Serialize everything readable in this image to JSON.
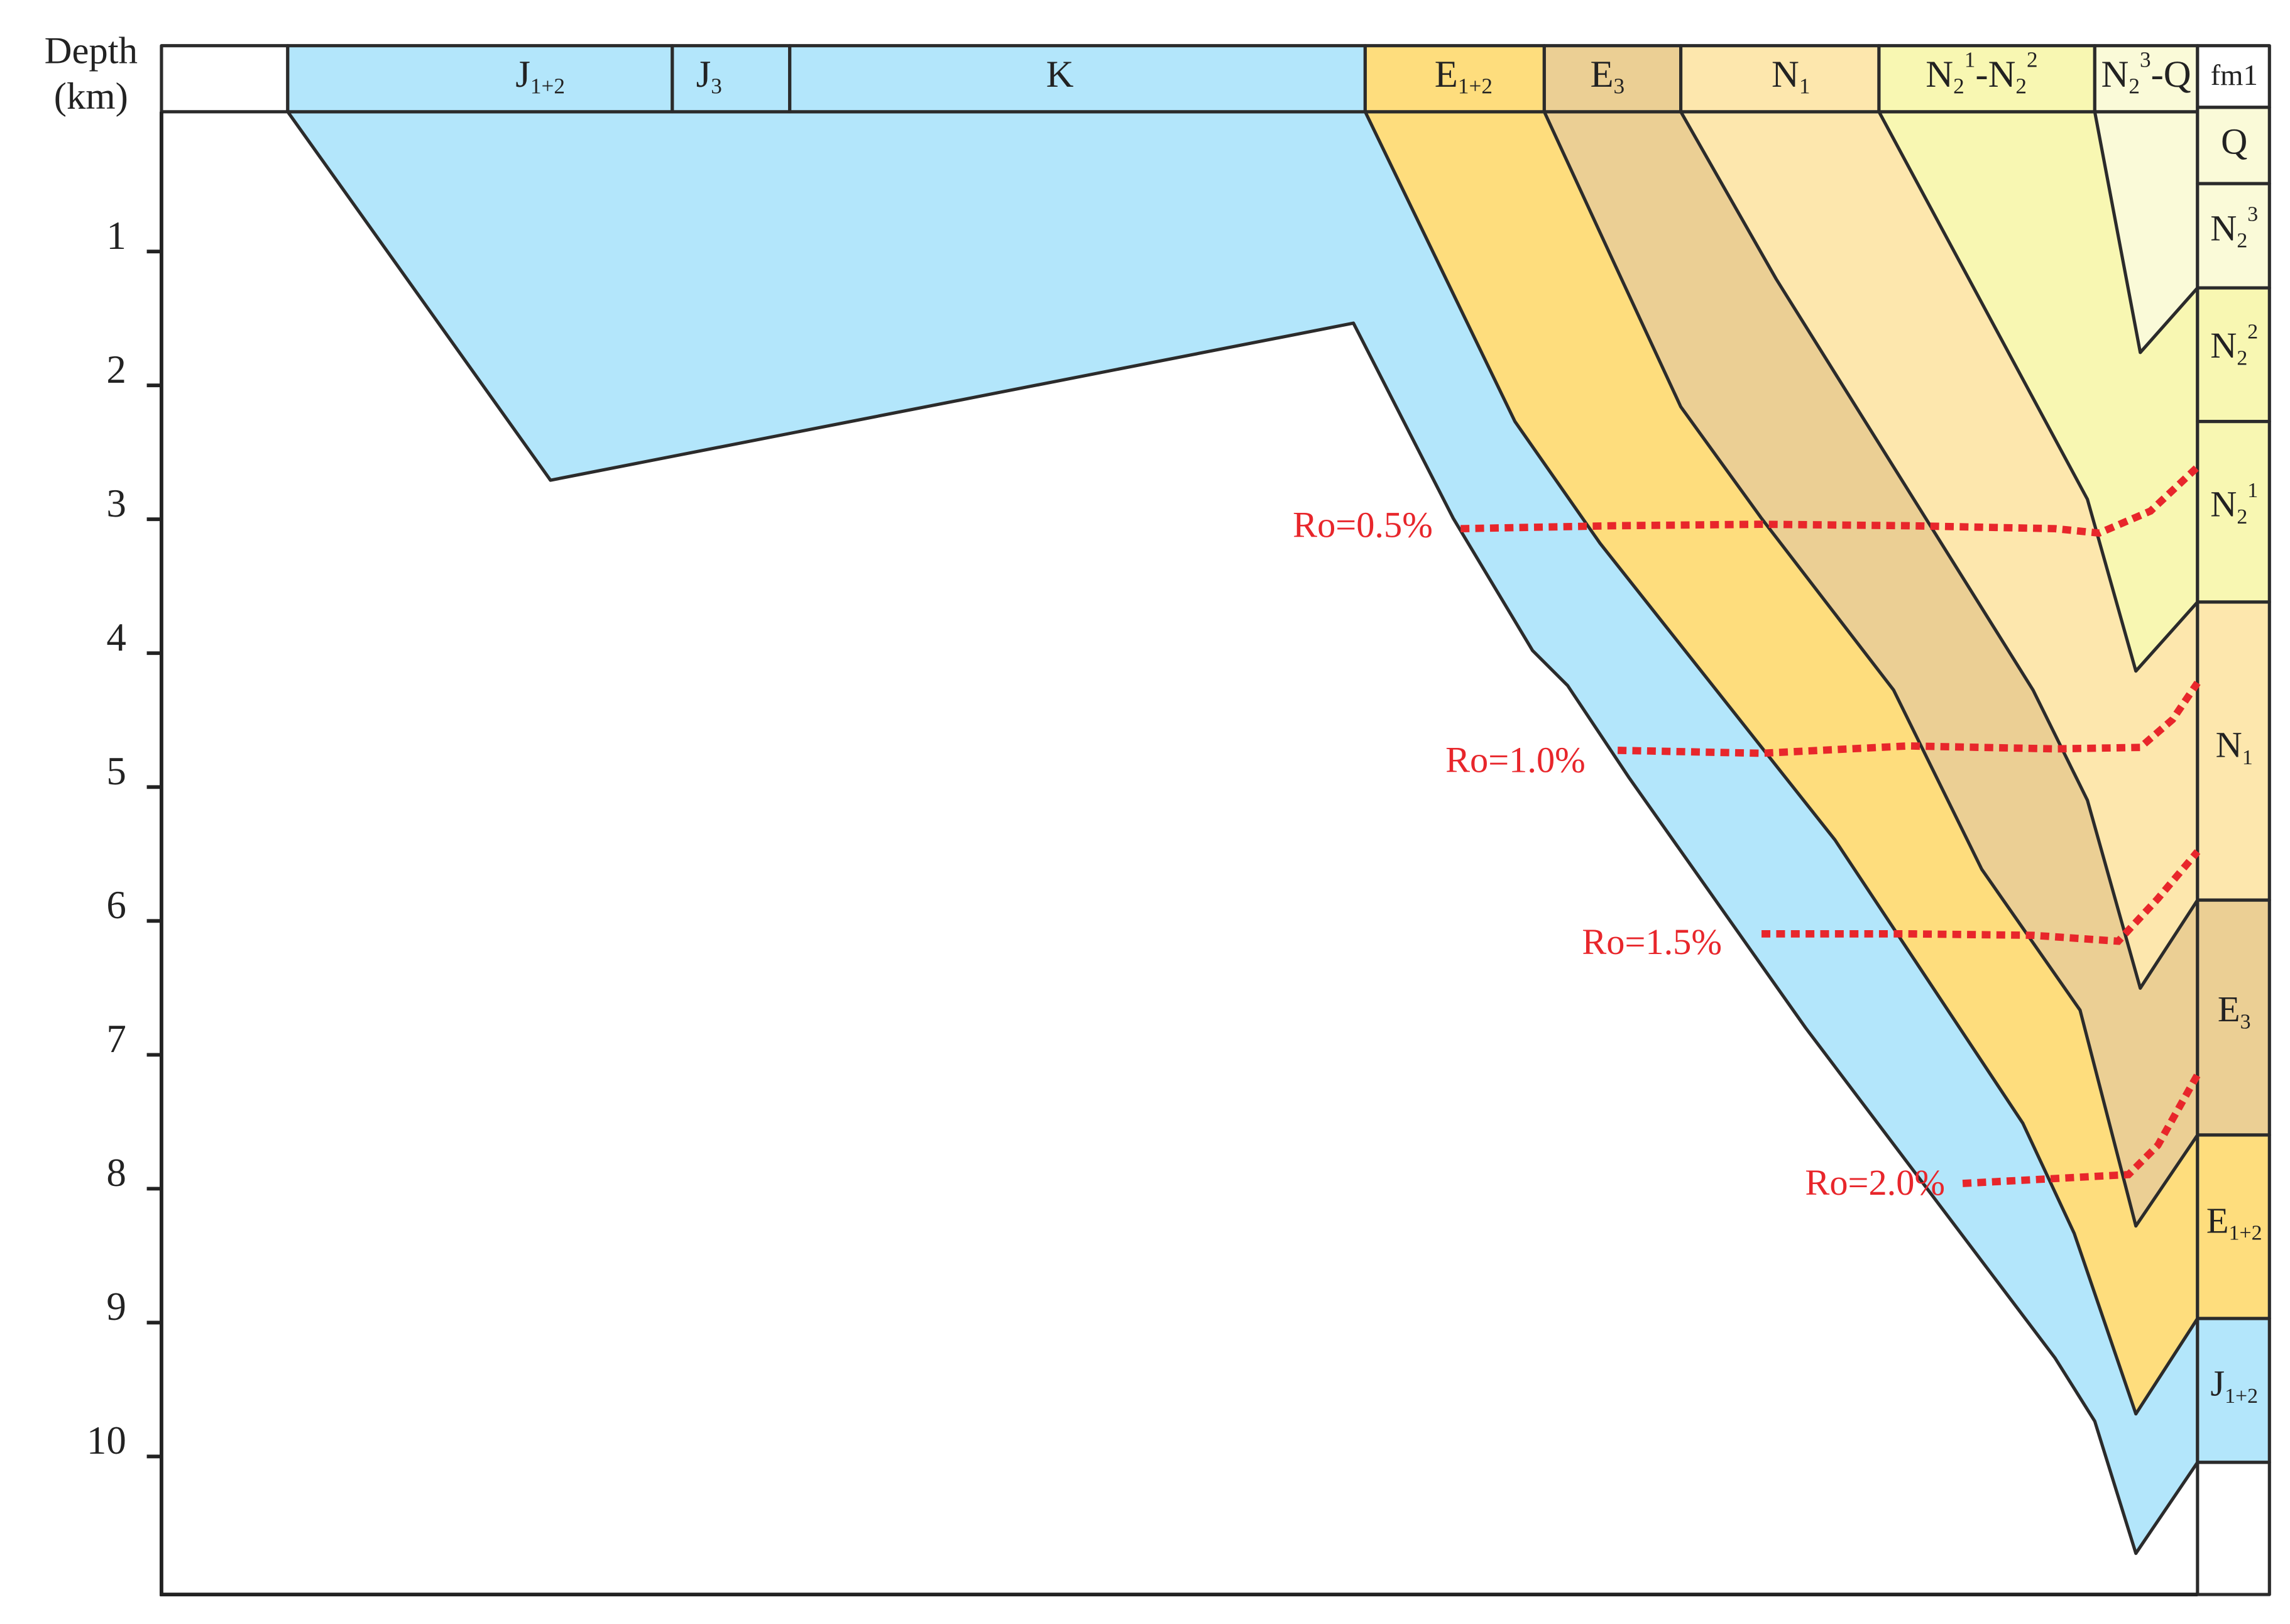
{
  "axis": {
    "title": [
      "Depth",
      "(km)"
    ],
    "ticks": [
      "1",
      "2",
      "3",
      "4",
      "5",
      "6",
      "7",
      "8",
      "9",
      "10"
    ]
  },
  "header": [
    [
      {
        "text": "J",
        "sub": "1+2"
      }
    ],
    [
      {
        "text": "J",
        "sub": "3"
      }
    ],
    [
      {
        "text": "K"
      }
    ],
    [
      {
        "text": "E",
        "sub": "1+2"
      }
    ],
    [
      {
        "text": "E",
        "sub": "3"
      }
    ],
    [
      {
        "text": "N",
        "sub": "1"
      }
    ],
    [
      {
        "text": "N",
        "sub": "2",
        "sup": "1"
      },
      {
        "text": "-N",
        "sub": "2",
        "sup": "2"
      }
    ],
    [
      {
        "text": "N",
        "sub": "2",
        "sup": "3"
      },
      {
        "text": "-Q"
      }
    ],
    [
      {
        "text": "fm1"
      }
    ]
  ],
  "column": [
    [
      {
        "text": "Q"
      }
    ],
    [
      {
        "text": "N",
        "sub": "2",
        "sup": "3"
      }
    ],
    [
      {
        "text": "N",
        "sub": "2",
        "sup": "2"
      }
    ],
    [
      {
        "text": "N",
        "sub": "2",
        "sup": "1"
      }
    ],
    [
      {
        "text": "N",
        "sub": "1"
      }
    ],
    [
      {
        "text": "E",
        "sub": "3"
      }
    ],
    [
      {
        "text": "E",
        "sub": "1+2"
      }
    ],
    [
      {
        "text": "J",
        "sub": "1+2"
      }
    ]
  ],
  "ro_labels": [
    "Ro=0.5%",
    "Ro=1.0%",
    "Ro=1.5%",
    "Ro=2.0%"
  ]
}
